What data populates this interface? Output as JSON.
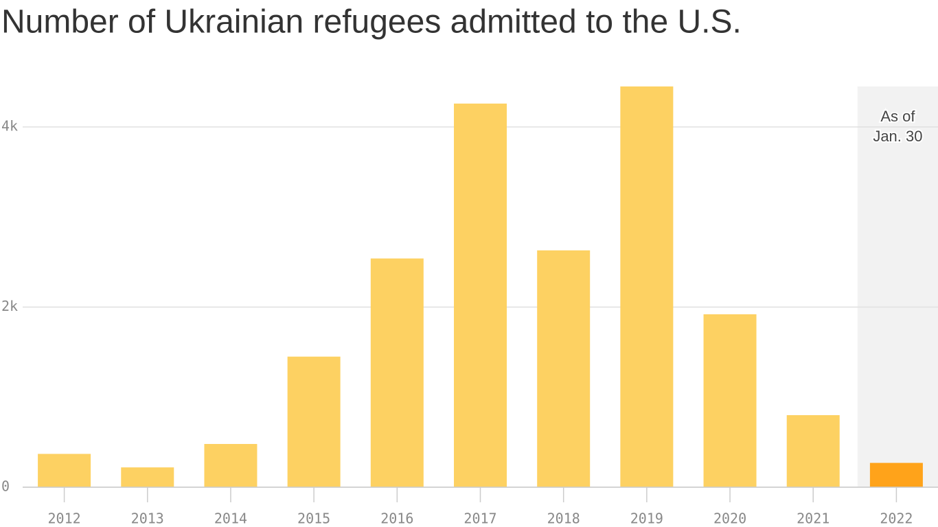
{
  "chart_data": {
    "type": "bar",
    "title": "Number of Ukrainian refugees admitted to the U.S.",
    "categories": [
      "2012",
      "2013",
      "2014",
      "2015",
      "2016",
      "2017",
      "2018",
      "2019",
      "2020",
      "2021",
      "2022"
    ],
    "values": [
      370,
      220,
      480,
      1450,
      2540,
      4260,
      2630,
      4450,
      1920,
      800,
      270
    ],
    "colors": [
      "#fdd162",
      "#fdd162",
      "#fdd162",
      "#fdd162",
      "#fdd162",
      "#fdd162",
      "#fdd162",
      "#fdd162",
      "#fdd162",
      "#fdd162",
      "#ffa31a"
    ],
    "ylim": [
      0,
      4450
    ],
    "yticks": [
      0,
      {
        "value": 2000,
        "label": "2k"
      },
      {
        "value": 4000,
        "label": "4k"
      }
    ],
    "grid": true,
    "annotation": [
      "As of",
      "Jan. 30"
    ]
  }
}
